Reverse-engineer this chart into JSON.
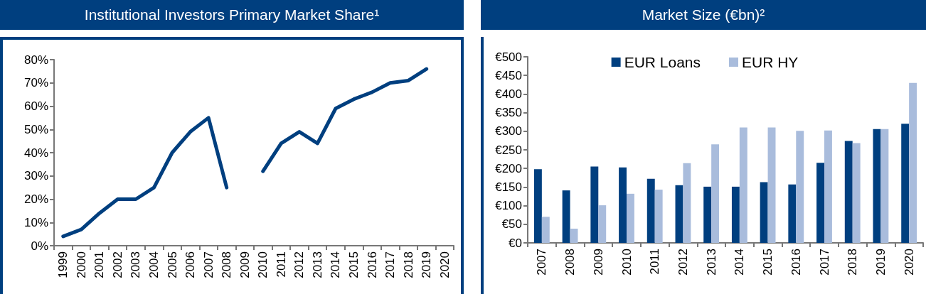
{
  "chart_data": [
    {
      "type": "line",
      "title": "Institutional Investors Primary Market Share¹",
      "categories": [
        "1999",
        "2000",
        "2001",
        "2002",
        "2003",
        "2004",
        "2005",
        "2006",
        "2007",
        "2008",
        "2009",
        "2010",
        "2011",
        "2012",
        "2013",
        "2014",
        "2015",
        "2016",
        "2017",
        "2018",
        "2019",
        "2020"
      ],
      "series": [
        {
          "color": "#003f7f",
          "values": [
            4,
            7,
            14,
            20,
            20,
            25,
            40,
            49,
            55,
            25,
            null,
            32,
            44,
            49,
            44,
            59,
            63,
            66,
            70,
            71,
            76,
            null
          ]
        }
      ],
      "ylim": [
        0,
        80
      ],
      "yticks": [
        {
          "value": 0,
          "label": "0%"
        },
        {
          "value": 10,
          "label": "10%"
        },
        {
          "value": 20,
          "label": "20%"
        },
        {
          "value": 30,
          "label": "30%"
        },
        {
          "value": 40,
          "label": "40%"
        },
        {
          "value": 50,
          "label": "50%"
        },
        {
          "value": 60,
          "label": "60%"
        },
        {
          "value": 70,
          "label": "70%"
        },
        {
          "value": 80,
          "label": "80%"
        }
      ],
      "grid": false,
      "legend": false,
      "marker": "none",
      "line_style": "solid"
    },
    {
      "type": "bar",
      "title": "Market Size (€bn)²",
      "categories": [
        "2007",
        "2008",
        "2009",
        "2010",
        "2011",
        "2012",
        "2013",
        "2014",
        "2015",
        "2016",
        "2017",
        "2018",
        "2019",
        "2020"
      ],
      "series": [
        {
          "name": "EUR Loans",
          "color": "#003f7f",
          "values": [
            198,
            141,
            205,
            203,
            172,
            155,
            151,
            151,
            163,
            157,
            215,
            274,
            306,
            320
          ]
        },
        {
          "name": "EUR HY",
          "color": "#a9bcdc",
          "values": [
            70,
            38,
            101,
            132,
            143,
            214,
            265,
            310,
            310,
            301,
            302,
            268,
            306,
            430
          ]
        }
      ],
      "ylim": [
        0,
        500
      ],
      "yticks": [
        {
          "value": 0,
          "label": "€0"
        },
        {
          "value": 50,
          "label": "€50"
        },
        {
          "value": 100,
          "label": "€100"
        },
        {
          "value": 150,
          "label": "€150"
        },
        {
          "value": 200,
          "label": "€200"
        },
        {
          "value": 250,
          "label": "€250"
        },
        {
          "value": 300,
          "label": "€300"
        },
        {
          "value": 350,
          "label": "€350"
        },
        {
          "value": 400,
          "label": "€400"
        },
        {
          "value": 450,
          "label": "€450"
        },
        {
          "value": 500,
          "label": "€500"
        }
      ],
      "grid": false,
      "legend": "top"
    }
  ]
}
